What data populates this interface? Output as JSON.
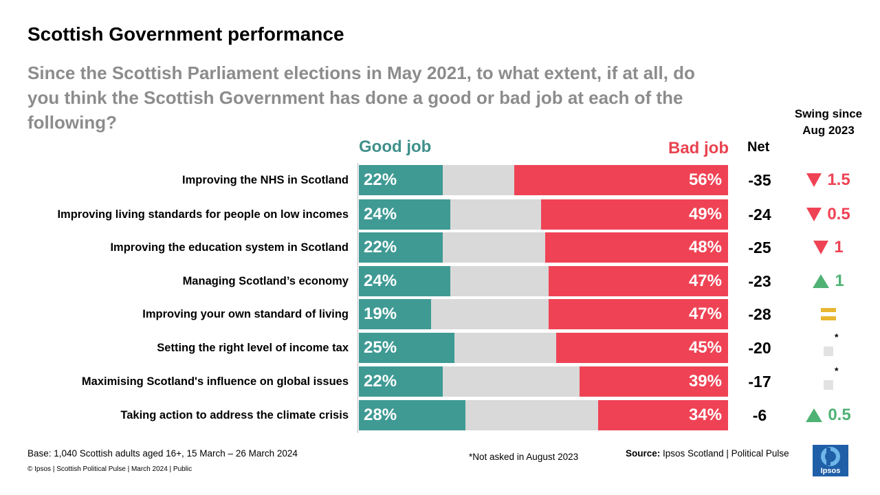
{
  "title": "Scottish Government performance",
  "subtitle": "Since the Scottish Parliament elections in May 2021, to what extent, if at all, do you think the Scottish Government has done a good or bad job at each of the following?",
  "headers": {
    "good": "Good job",
    "bad": "Bad job",
    "net": "Net",
    "swing": "Swing since Aug 2023"
  },
  "colors": {
    "good": "#3f9a94",
    "bad": "#ef4355",
    "neutral": "#d9d9d9",
    "up": "#4fb274",
    "equal": "#e8b630"
  },
  "chart_data": {
    "type": "bar",
    "stacked": true,
    "categories": [
      "Improving the NHS in Scotland",
      "Improving living standards for people on low incomes",
      "Improving the education system in Scotland",
      "Managing Scotland’s economy",
      "Improving your own standard of living",
      "Setting the right level of income tax",
      "Maximising Scotland's influence on global issues",
      "Taking action to address the climate crisis"
    ],
    "series": [
      {
        "name": "Good job",
        "values": [
          22,
          24,
          22,
          24,
          19,
          25,
          22,
          28
        ]
      },
      {
        "name": "Bad job",
        "values": [
          56,
          49,
          48,
          47,
          47,
          45,
          39,
          34
        ]
      }
    ],
    "value_labels": {
      "good": [
        "22%",
        "24%",
        "22%",
        "24%",
        "19%",
        "25%",
        "22%",
        "28%"
      ],
      "bad": [
        "56%",
        "49%",
        "48%",
        "47%",
        "47%",
        "45%",
        "39%",
        "34%"
      ]
    },
    "net": [
      "-35",
      "-24",
      "-25",
      "-23",
      "-28",
      "-20",
      "-17",
      "-6"
    ],
    "swing": [
      {
        "dir": "down",
        "value": "1.5"
      },
      {
        "dir": "down",
        "value": "0.5"
      },
      {
        "dir": "down",
        "value": "1"
      },
      {
        "dir": "up",
        "value": "1"
      },
      {
        "dir": "equal",
        "value": ""
      },
      {
        "dir": "na",
        "value": "*"
      },
      {
        "dir": "na",
        "value": "*"
      },
      {
        "dir": "up",
        "value": "0.5"
      }
    ],
    "xlim": [
      0,
      100
    ]
  },
  "footer": {
    "base": "Base: 1,040 Scottish adults aged 16+, 15 March – 26 March 2024",
    "note": "*Not asked in August 2023",
    "source_label": "Source:",
    "source_text": " Ipsos Scotland | Political Pulse",
    "copyright": "© Ipsos | Scottish Political Pulse | March 2024 | Public",
    "logo": "Ipsos"
  }
}
